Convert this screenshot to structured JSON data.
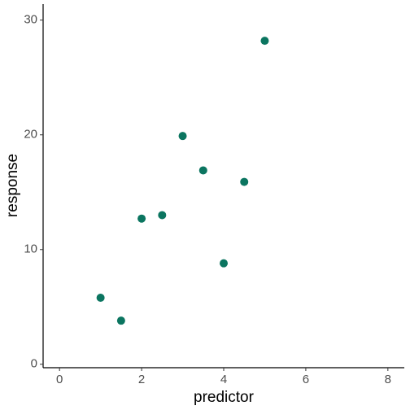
{
  "chart_data": {
    "type": "scatter",
    "x_label": "predictor",
    "y_label": "response",
    "x": [
      1,
      1.5,
      2,
      2.5,
      3,
      3.5,
      4,
      4.5,
      5
    ],
    "values": [
      5.8,
      3.8,
      12.7,
      13,
      19.9,
      16.9,
      8.8,
      15.9,
      28.2
    ],
    "color": "#0b7560",
    "xlim": [
      -0.4,
      8.4
    ],
    "xticks": [
      0,
      2,
      4,
      6,
      8
    ],
    "ylim": [
      -0.3,
      31.4
    ],
    "yticks": [
      0,
      10,
      20,
      30
    ]
  }
}
